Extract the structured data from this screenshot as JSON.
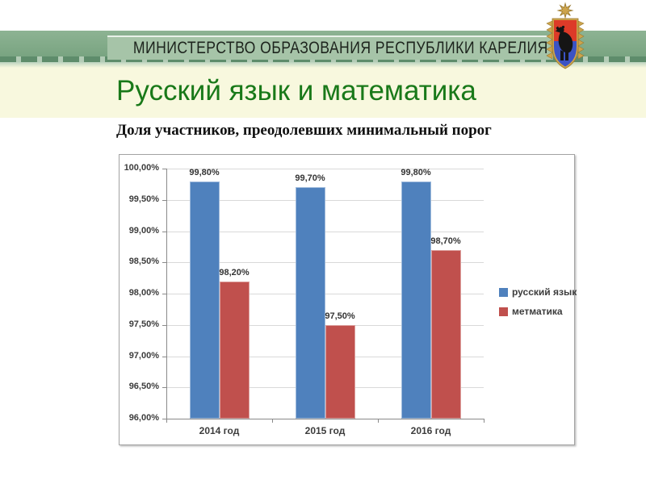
{
  "header": {
    "banner_text": "МИНИСТЕРСТВО ОБРАЗОВАНИЯ РЕСПУБЛИКИ КАРЕЛИЯ",
    "emblem": "karelia-coat-of-arms"
  },
  "slide": {
    "title": "Русский язык и математика",
    "title_color": "#197919",
    "subtitle": "Доля участников, преодолевших минимальный порог"
  },
  "chart_data": {
    "type": "bar",
    "title": "Доля участников, преодолевших минимальный порог",
    "categories": [
      "2014 год",
      "2015 год",
      "2016 год"
    ],
    "series": [
      {
        "name": "русский язык",
        "color": "#4f81bd",
        "values": [
          99.8,
          99.7,
          99.8
        ],
        "value_labels": [
          "99,80%",
          "99,70%",
          "99,80%"
        ]
      },
      {
        "name": "метматика",
        "color": "#c0504d",
        "values": [
          98.2,
          97.5,
          98.7
        ],
        "value_labels": [
          "98,20%",
          "97,50%",
          "98,70%"
        ]
      }
    ],
    "ylim": [
      96,
      100
    ],
    "ytick_step": 0.5,
    "ytick_labels": [
      "96,00%",
      "96,50%",
      "97,00%",
      "97,50%",
      "98,00%",
      "98,50%",
      "99,00%",
      "99,50%",
      "100,00%"
    ],
    "grid": true,
    "legend_position": "right"
  }
}
